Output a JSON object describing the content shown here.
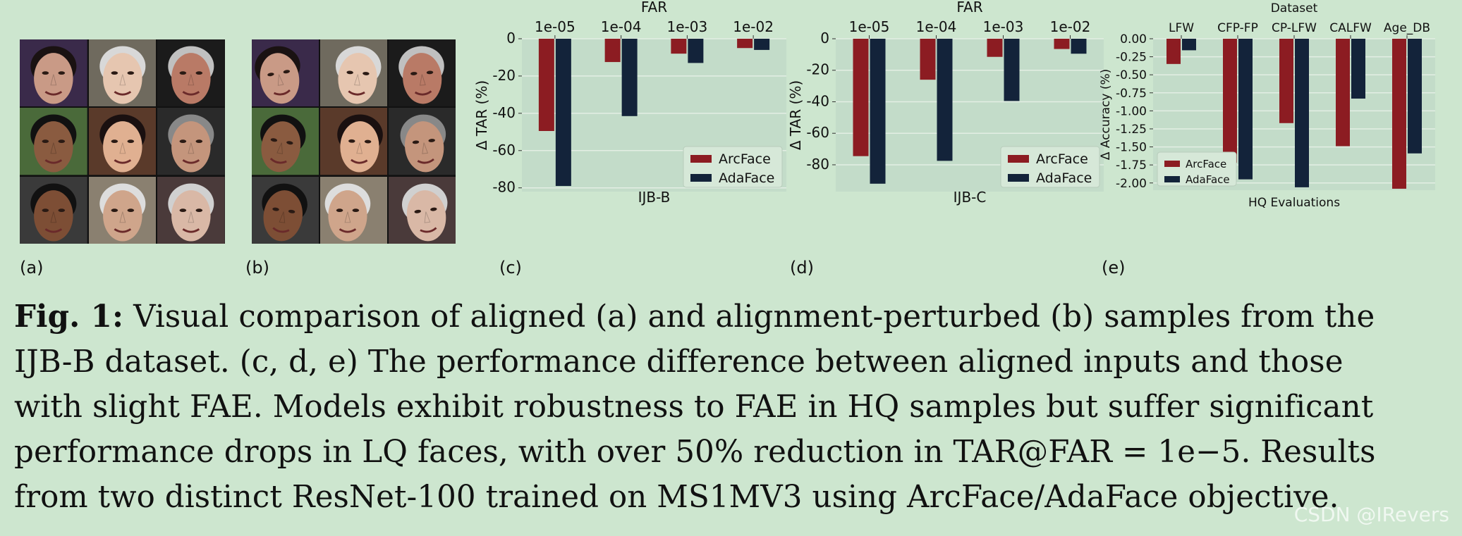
{
  "panels": {
    "a": {
      "label": "(a)"
    },
    "b": {
      "label": "(b)"
    },
    "c": {
      "label": "(c)"
    },
    "d": {
      "label": "(d)"
    },
    "e": {
      "label": "(e)"
    }
  },
  "faces": {
    "a": [
      "face-1",
      "face-2",
      "face-3",
      "face-4",
      "face-5",
      "face-6",
      "face-7",
      "face-8",
      "face-9"
    ],
    "b": [
      "face-1",
      "face-2",
      "face-3",
      "face-4",
      "face-5",
      "face-6",
      "face-7",
      "face-8",
      "face-9"
    ]
  },
  "colors": {
    "arcface": "#8c1c22",
    "adaface": "#13233a",
    "plot_bg": "#c3dcc9",
    "grid": "#e3eee4",
    "page_bg": "#cde6cf"
  },
  "chart_data": [
    {
      "id": "c",
      "type": "bar",
      "title": "FAR",
      "xlabel": "IJB-B",
      "ylabel": "Δ TAR (%)",
      "categories": [
        "1e-05",
        "1e-04",
        "1e-03",
        "1e-02"
      ],
      "ylim": [
        -82,
        0
      ],
      "yticks": [
        0,
        -20,
        -40,
        -60,
        -80
      ],
      "grid": true,
      "legend_position": "lower-right",
      "series": [
        {
          "name": "ArcFace",
          "values": [
            -49.5,
            -12.5,
            -8.0,
            -5.0
          ]
        },
        {
          "name": "AdaFace",
          "values": [
            -79.0,
            -41.5,
            -13.0,
            -6.0
          ]
        }
      ]
    },
    {
      "id": "d",
      "type": "bar",
      "title": "FAR",
      "xlabel": "IJB-C",
      "ylabel": "Δ TAR (%)",
      "categories": [
        "1e-05",
        "1e-04",
        "1e-03",
        "1e-02"
      ],
      "ylim": [
        -97,
        0
      ],
      "yticks": [
        0,
        -20,
        -40,
        -60,
        -80
      ],
      "grid": true,
      "legend_position": "lower-right",
      "series": [
        {
          "name": "ArcFace",
          "values": [
            -74.5,
            -26.0,
            -11.5,
            -6.5
          ]
        },
        {
          "name": "AdaFace",
          "values": [
            -92.0,
            -77.5,
            -39.5,
            -9.5
          ]
        }
      ]
    },
    {
      "id": "e",
      "type": "bar",
      "title": "Dataset",
      "xlabel": "HQ Evaluations",
      "ylabel": "Δ Accuracy (%)",
      "categories": [
        "LFW",
        "CFP-FP",
        "CP-LFW",
        "CALFW",
        "Age_DB"
      ],
      "ylim": [
        -2.1,
        0
      ],
      "yticks": [
        "0.00",
        "-0.25",
        "-0.50",
        "-0.75",
        "-1.00",
        "-1.25",
        "-1.50",
        "-1.75",
        "-2.00"
      ],
      "grid": true,
      "legend_position": "lower-left",
      "series": [
        {
          "name": "ArcFace",
          "values": [
            -0.35,
            -1.72,
            -1.17,
            -1.49,
            -2.08
          ]
        },
        {
          "name": "AdaFace",
          "values": [
            -0.16,
            -1.95,
            -2.06,
            -0.83,
            -1.59
          ]
        }
      ]
    }
  ],
  "caption": {
    "fig_label": "Fig. 1:",
    "line1": " Visual comparison of aligned (a) and alignment-perturbed (b) samples from the",
    "line2": "IJB-B dataset. (c, d, e) The performance difference between aligned inputs and those",
    "line3": "with slight FAE. Models exhibit robustness to FAE in HQ samples but suffer significant",
    "line4": "performance drops in LQ faces, with over 50% reduction in TAR@FAR = 1e−5. Results",
    "line5": "from two distinct ResNet-100 trained on MS1MV3 using ArcFace/AdaFace objective."
  },
  "watermark": "CSDN @IRevers"
}
